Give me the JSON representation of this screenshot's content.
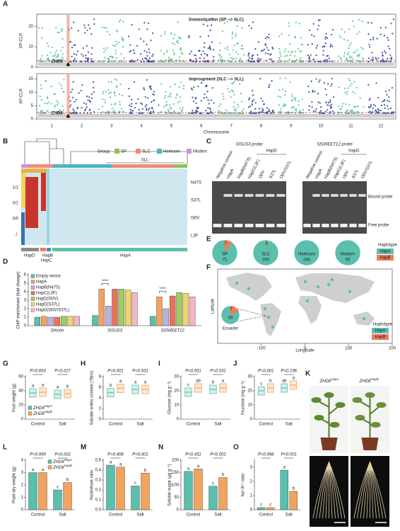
{
  "panel_labels": [
    "A",
    "B",
    "C",
    "D",
    "E",
    "F",
    "G",
    "H",
    "I",
    "J",
    "K",
    "L",
    "M",
    "N",
    "O"
  ],
  "manhattan": {
    "y_label": "XP-CLR",
    "x_label": "Chromosome",
    "gene": "ZHD8",
    "plots": [
      {
        "title": "Domestication (SP --> SLC)",
        "ylim": [
          0,
          26
        ],
        "yticks": [
          0,
          10,
          20
        ]
      },
      {
        "title": "Improvement (SLC --> SLL)",
        "ylim": [
          0,
          17
        ],
        "yticks": [
          0,
          5,
          10,
          15
        ]
      }
    ],
    "chromosomes": [
      "1",
      "2",
      "3",
      "4",
      "5",
      "6",
      "7",
      "8",
      "9",
      "10",
      "11",
      "12"
    ]
  },
  "heatmap": {
    "group_title": "Group:",
    "groups": [
      {
        "name": "SP",
        "color": "#8fbf4f"
      },
      {
        "name": "SLC",
        "color": "#f08b7e"
      },
      {
        "name": "Heirloom",
        "color": "#4bb5c1"
      },
      {
        "name": "Modern",
        "color": "#c29bd6"
      }
    ],
    "sll": "SLL",
    "genotypes": [
      "1/1",
      "0/1",
      "0/0",
      "./."
    ],
    "sites": [
      "N47S",
      "S37L",
      "I30V",
      "L3F"
    ],
    "haplotypes": [
      "HapD",
      "HapB",
      "HapC",
      "HapA"
    ]
  },
  "gel": {
    "probes": [
      {
        "title": "SlSUS3 probe",
        "group": "HapD",
        "lanes": [
          "Negative control",
          "HapA",
          "HapB(N47S)",
          "HapC(L3F)",
          "I30V",
          "S37L",
          "I30V/S37L"
        ]
      },
      {
        "title": "SlSWEET12 probe",
        "group": "HapD",
        "lanes": [
          "Negative control",
          "HapA",
          "HapB(N47S)",
          "HapC(L3F)",
          "I30V",
          "S37L",
          "I30V/S37L"
        ]
      }
    ],
    "bound": "Bound probe",
    "free": "Free probe"
  },
  "pies": {
    "groups": [
      {
        "name": "SP",
        "count": 71,
        "hapb": 7
      },
      {
        "name": "SLC",
        "count": 250,
        "hapb": 4
      },
      {
        "name": "Heirloom",
        "count": 240
      },
      {
        "name": "Modern",
        "count": 55
      }
    ],
    "legend_title": "Haplotype",
    "legend": [
      {
        "name": "HapA",
        "color": "#5bbfad"
      },
      {
        "name": "HapB",
        "color": "#f07a5a"
      }
    ]
  },
  "map": {
    "x_label": "Longitude",
    "y_label": "Latitude",
    "xlim": [
      -200,
      200
    ],
    "xticks": [
      -100,
      0,
      100,
      200
    ],
    "inset": {
      "name": "Ecuador",
      "count": 39,
      "hapb": 7
    },
    "legend_title": "Haplotype",
    "legend": [
      {
        "name": "HapA",
        "color": "#5bbfad"
      },
      {
        "name": "HapB",
        "color": "#f07a5a"
      }
    ]
  },
  "photos": {
    "labels": [
      {
        "name": "ZHD8",
        "allele": "HapA"
      },
      {
        "name": "ZHD8",
        "allele": "HapB"
      }
    ]
  },
  "chart_data": [
    {
      "type": "bar",
      "y_label": "ChIP enrichment (fold change)",
      "categories": [
        "SlActin",
        "SlSUS3",
        "SlSWEET12"
      ],
      "series": [
        {
          "name": "Empty vector",
          "color": "#5bbfad",
          "values": [
            1.0,
            1.2,
            1.1
          ]
        },
        {
          "name": "HapA",
          "color": "#f2a35e",
          "values": [
            1.1,
            4.3,
            3.4
          ]
        },
        {
          "name": "HapB(N47S)",
          "color": "#b8b2dd",
          "values": [
            1.0,
            2.3,
            2.0
          ]
        },
        {
          "name": "HapC(L3F)",
          "color": "#e8735a",
          "values": [
            1.0,
            4.3,
            3.5
          ]
        },
        {
          "name": "HapD(I30V)",
          "color": "#9ccc65",
          "values": [
            1.1,
            4.3,
            3.9
          ]
        },
        {
          "name": "HapD(S37L)",
          "color": "#f3d36b",
          "values": [
            1.1,
            4.2,
            3.8
          ]
        },
        {
          "name": "HapD(I30V/S37L)",
          "color": "#f2b8c6",
          "values": [
            1.1,
            3.9,
            3.4
          ]
        }
      ],
      "ylim": [
        0,
        6
      ],
      "yticks": [
        0,
        1,
        2,
        3,
        4,
        5,
        6
      ],
      "annotations": [
        "****",
        "****"
      ],
      "legend": "upper-left"
    },
    {
      "type": "box",
      "y_label": "Fruit weight (g)",
      "categories": [
        "Control",
        "Salt"
      ],
      "series": [
        {
          "name": "ZHD8",
          "allele": "HapA",
          "color": "#5bbfad",
          "values": [
            37,
            35
          ],
          "letters": [
            "a",
            "a"
          ]
        },
        {
          "name": "ZHD8",
          "allele": "HapB",
          "color": "#f2a35e",
          "values": [
            38,
            36
          ],
          "letters": [
            "a",
            "b"
          ]
        }
      ],
      "ylim": [
        0,
        60
      ],
      "yticks": [
        0,
        20,
        40,
        60
      ],
      "p_values": [
        "P=0.653",
        "P=0.027"
      ],
      "legend": "lower-left"
    },
    {
      "type": "box",
      "y_label": "Soluble solids content (°Brix)",
      "categories": [
        "Control",
        "Salt"
      ],
      "series": [
        {
          "name": "ZHD8",
          "allele": "HapA",
          "color": "#5bbfad",
          "values": [
            5.0,
            5.6
          ],
          "letters": [
            "b",
            "a"
          ]
        },
        {
          "name": "ZHD8",
          "allele": "HapB",
          "color": "#f2a35e",
          "values": [
            5.8,
            5.6
          ],
          "letters": [
            "a",
            "a"
          ]
        }
      ],
      "ylim": [
        0,
        8
      ],
      "yticks": [
        0,
        2,
        4,
        6,
        8
      ],
      "p_values": [
        "P=0.001",
        "P=0.931"
      ]
    },
    {
      "type": "box",
      "y_label": "Glucose (mg g⁻¹)",
      "categories": [
        "Control",
        "Salt"
      ],
      "series": [
        {
          "name": "ZHD8",
          "allele": "HapA",
          "color": "#5bbfad",
          "values": [
            19,
            21
          ],
          "letters": [
            "c",
            "b"
          ]
        },
        {
          "name": "ZHD8",
          "allele": "HapB",
          "color": "#f2a35e",
          "values": [
            22,
            22
          ],
          "letters": [
            "ab",
            "a"
          ]
        }
      ],
      "ylim": [
        0,
        30
      ],
      "yticks": [
        0,
        10,
        20,
        30
      ],
      "p_values": [
        "P<0.001",
        "P=0.031"
      ]
    },
    {
      "type": "box",
      "y_label": "Fructose (mg g⁻¹)",
      "categories": [
        "Control",
        "Salt"
      ],
      "series": [
        {
          "name": "ZHD8",
          "allele": "HapA",
          "color": "#5bbfad",
          "values": [
            20,
            22
          ],
          "letters": [
            "c",
            "ab"
          ]
        },
        {
          "name": "ZHD8",
          "allele": "HapB",
          "color": "#f2a35e",
          "values": [
            22,
            24
          ],
          "letters": [
            "b",
            "a"
          ]
        }
      ],
      "ylim": [
        0,
        30
      ],
      "yticks": [
        0,
        10,
        20,
        30
      ],
      "p_values": [
        "P=0.001",
        "P=0.196"
      ]
    },
    {
      "type": "bar",
      "y_label": "Plant dry weight (g)",
      "categories": [
        "Control",
        "Salt"
      ],
      "series": [
        {
          "name": "ZHD8",
          "allele": "HapA",
          "color": "#5bbfad",
          "values": [
            3.0,
            1.6
          ],
          "letters": [
            "a",
            "c"
          ]
        },
        {
          "name": "ZHD8",
          "allele": "HapB",
          "color": "#f2a35e",
          "values": [
            3.0,
            2.2
          ],
          "letters": [
            "a",
            "b"
          ]
        }
      ],
      "ylim": [
        0,
        4
      ],
      "yticks": [
        0,
        1,
        2,
        3,
        4
      ],
      "p_values": [
        "P=0.999",
        "P=0.002"
      ],
      "legend": "upper-right"
    },
    {
      "type": "bar",
      "y_label": "Root/shoot ratio",
      "categories": [
        "Control",
        "Salt"
      ],
      "series": [
        {
          "name": "ZHD8",
          "allele": "HapA",
          "color": "#5bbfad",
          "values": [
            0.45,
            0.24
          ],
          "letters": [
            "a",
            "c"
          ]
        },
        {
          "name": "ZHD8",
          "allele": "HapB",
          "color": "#f2a35e",
          "values": [
            0.43,
            0.37
          ],
          "letters": [
            "a",
            "b"
          ]
        }
      ],
      "ylim": [
        0,
        0.5
      ],
      "yticks": [
        {
          "value": 0,
          "label": "0.0"
        },
        0.1,
        0.2,
        0.3,
        0.4,
        0.5
      ],
      "p_values": [
        "P=0.408",
        "P<0.001"
      ]
    },
    {
      "type": "bar",
      "y_label": "Soluble sugar (μg g⁻¹)",
      "categories": [
        "Control",
        "Salt"
      ],
      "series": [
        {
          "name": "ZHD8",
          "allele": "HapA",
          "color": "#5bbfad",
          "values": [
            155,
            95
          ],
          "letters": [
            "a",
            "c"
          ]
        },
        {
          "name": "ZHD8",
          "allele": "HapB",
          "color": "#f2a35e",
          "values": [
            165,
            130
          ],
          "letters": [
            "a",
            "b"
          ]
        }
      ],
      "ylim": [
        0,
        200
      ],
      "yticks": [
        0,
        50,
        100,
        150,
        200
      ],
      "p_values": [
        "P=0.431",
        "P<0.001"
      ]
    },
    {
      "type": "bar",
      "y_label": "Na⁺/K⁺ ratio",
      "categories": [
        "Control",
        "Salt"
      ],
      "series": [
        {
          "name": "ZHD8",
          "allele": "HapA",
          "color": "#5bbfad",
          "values": [
            0.15,
            2.8
          ],
          "letters": [
            "c",
            "a"
          ]
        },
        {
          "name": "ZHD8",
          "allele": "HapB",
          "color": "#f2a35e",
          "values": [
            0.15,
            1.3
          ],
          "letters": [
            "c",
            "b"
          ]
        }
      ],
      "ylim": [
        0,
        3.5
      ],
      "yticks": [
        0,
        1,
        2,
        3
      ],
      "p_values": [
        "P=0.998",
        "P<0.001"
      ]
    }
  ]
}
